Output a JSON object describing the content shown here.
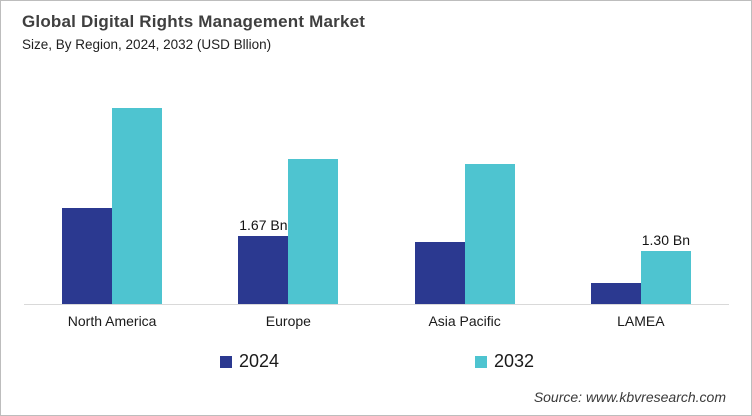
{
  "header": {
    "title": "Global Digital Rights Management Market",
    "subtitle": "Size, By Region, 2024, 2032 (USD Bllion)"
  },
  "chart_data": {
    "type": "bar",
    "title": "Global Digital Rights Management Market Size, By Region, 2024, 2032 (USD Bllion)",
    "unit": "USD Billion",
    "categories": [
      "North America",
      "Europe",
      "Asia Pacific",
      "LAMEA"
    ],
    "series": [
      {
        "name": "2024",
        "color": "#2B3990",
        "values": [
          2.36,
          1.67,
          1.52,
          0.52
        ]
      },
      {
        "name": "2032",
        "color": "#4EC4D0",
        "values": [
          4.82,
          3.56,
          3.44,
          1.3
        ]
      }
    ],
    "bar_labels": [
      {
        "category": "Europe",
        "series": "2024",
        "text": "1.67 Bn"
      },
      {
        "category": "LAMEA",
        "series": "2032",
        "text": "1.30 Bn"
      }
    ],
    "ylim": [
      0,
      5.2
    ],
    "grid": false,
    "legend_position": "bottom"
  },
  "footer": {
    "source": "Source: www.kbvresearch.com"
  }
}
